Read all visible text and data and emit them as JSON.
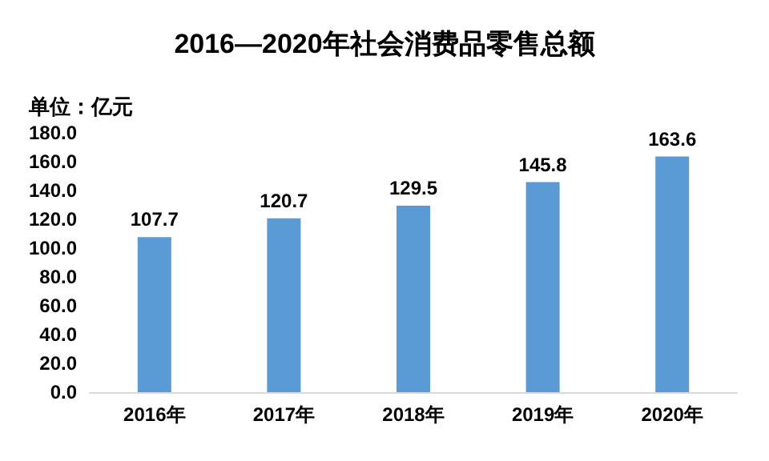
{
  "chart_data": {
    "type": "bar",
    "title": "2016—2020年社会消费品零售总额",
    "ylabel": "单位：亿元",
    "categories": [
      "2016年",
      "2017年",
      "2018年",
      "2019年",
      "2020年"
    ],
    "values": [
      107.7,
      120.7,
      129.5,
      145.8,
      163.6
    ],
    "color": "#5b9bd5",
    "ylim": [
      0,
      180
    ],
    "yticks": [
      {
        "value": 0,
        "label": "0.0"
      },
      {
        "value": 20,
        "label": "20.0"
      },
      {
        "value": 40,
        "label": "40.0"
      },
      {
        "value": 60,
        "label": "60.0"
      },
      {
        "value": 80,
        "label": "80.0"
      },
      {
        "value": 100,
        "label": "100.0"
      },
      {
        "value": 120,
        "label": "120.0"
      },
      {
        "value": 140,
        "label": "140.0"
      },
      {
        "value": 160,
        "label": "160.0"
      },
      {
        "value": 180,
        "label": "180.0"
      }
    ],
    "data_labels": true
  }
}
